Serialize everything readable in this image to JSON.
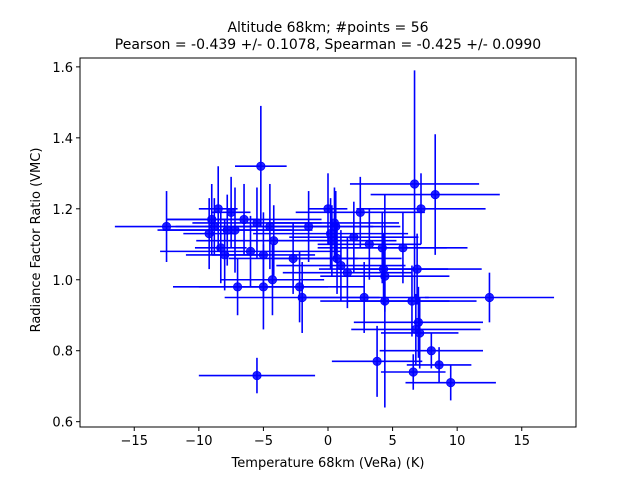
{
  "chart_data": {
    "type": "scatter",
    "title_line1": "Altitude 68km;  #points = 56",
    "title_line2": "Pearson = -0.439 +/-  0.1078, Spearman = -0.425 +/-  0.0990",
    "xlabel": "Temperature 68km (VeRa) (K)",
    "ylabel": "Radiance Factor Ratio (VMC)",
    "xlim": [
      -19.2,
      19.2
    ],
    "ylim": [
      0.585,
      1.625
    ],
    "xticks": [
      -15,
      -10,
      -5,
      0,
      5,
      10,
      15
    ],
    "xtick_labels": [
      "−15",
      "−10",
      "−5",
      "0",
      "5",
      "10",
      "15"
    ],
    "yticks": [
      0.6,
      0.8,
      1.0,
      1.2,
      1.4,
      1.6
    ],
    "ytick_labels": [
      "0.6",
      "0.8",
      "1.0",
      "1.2",
      "1.4",
      "1.6"
    ],
    "grid": false,
    "marker_color": "#0000ff",
    "series": [
      {
        "points": [
          {
            "x": -12.5,
            "y": 1.15,
            "xerr": 4.0,
            "yerr": 0.1
          },
          {
            "x": -9.0,
            "y": 1.17,
            "xerr": 3.5,
            "yerr": 0.1
          },
          {
            "x": -8.8,
            "y": 1.15,
            "xerr": 3.0,
            "yerr": 0.08
          },
          {
            "x": -8.5,
            "y": 1.2,
            "xerr": 1.5,
            "yerr": 0.12
          },
          {
            "x": -8.3,
            "y": 1.09,
            "xerr": 2.0,
            "yerr": 0.1
          },
          {
            "x": -8.0,
            "y": 1.07,
            "xerr": 3.0,
            "yerr": 0.1
          },
          {
            "x": -7.8,
            "y": 1.14,
            "xerr": 5.0,
            "yerr": 0.1
          },
          {
            "x": -7.5,
            "y": 1.19,
            "xerr": 1.5,
            "yerr": 0.1
          },
          {
            "x": -7.2,
            "y": 1.14,
            "xerr": 6.0,
            "yerr": 0.12
          },
          {
            "x": -7.0,
            "y": 0.98,
            "xerr": 5.0,
            "yerr": 0.08
          },
          {
            "x": -6.5,
            "y": 1.17,
            "xerr": 6.0,
            "yerr": 0.1
          },
          {
            "x": -6.0,
            "y": 1.08,
            "xerr": 7.0,
            "yerr": 0.1
          },
          {
            "x": -5.5,
            "y": 1.16,
            "xerr": 5.0,
            "yerr": 0.1
          },
          {
            "x": -5.5,
            "y": 0.73,
            "xerr": 4.5,
            "yerr": 0.05
          },
          {
            "x": -5.2,
            "y": 1.32,
            "xerr": 2.0,
            "yerr": 0.17
          },
          {
            "x": -5.0,
            "y": 0.98,
            "xerr": 5.0,
            "yerr": 0.12
          },
          {
            "x": -5.0,
            "y": 1.07,
            "xerr": 4.0,
            "yerr": 0.12
          },
          {
            "x": -4.5,
            "y": 1.15,
            "xerr": 5.0,
            "yerr": 0.12
          },
          {
            "x": -4.3,
            "y": 1.0,
            "xerr": 4.0,
            "yerr": 0.1
          },
          {
            "x": -4.2,
            "y": 1.11,
            "xerr": 6.0,
            "yerr": 0.1
          },
          {
            "x": -2.7,
            "y": 1.06,
            "xerr": 5.0,
            "yerr": 0.1
          },
          {
            "x": -2.2,
            "y": 0.98,
            "xerr": 5.0,
            "yerr": 0.1
          },
          {
            "x": -2.0,
            "y": 0.95,
            "xerr": 6.0,
            "yerr": 0.1
          },
          {
            "x": -1.5,
            "y": 1.15,
            "xerr": 5.0,
            "yerr": 0.1
          },
          {
            "x": 0.0,
            "y": 1.2,
            "xerr": 1.5,
            "yerr": 0.1
          },
          {
            "x": 0.2,
            "y": 1.13,
            "xerr": 6.0,
            "yerr": 0.1
          },
          {
            "x": 0.3,
            "y": 1.11,
            "xerr": 5.0,
            "yerr": 0.1
          },
          {
            "x": 0.5,
            "y": 1.16,
            "xerr": 5.0,
            "yerr": 0.1
          },
          {
            "x": 0.7,
            "y": 1.06,
            "xerr": 5.0,
            "yerr": 0.1
          },
          {
            "x": 1.0,
            "y": 1.04,
            "xerr": 5.0,
            "yerr": 0.1
          },
          {
            "x": 1.5,
            "y": 1.02,
            "xerr": 5.0,
            "yerr": 0.1
          },
          {
            "x": 2.0,
            "y": 1.12,
            "xerr": 5.0,
            "yerr": 0.1
          },
          {
            "x": 2.5,
            "y": 1.19,
            "xerr": 5.0,
            "yerr": 0.1
          },
          {
            "x": 2.8,
            "y": 0.95,
            "xerr": 5.0,
            "yerr": 0.1
          },
          {
            "x": 3.2,
            "y": 1.1,
            "xerr": 4.0,
            "yerr": 0.1
          },
          {
            "x": 3.8,
            "y": 0.77,
            "xerr": 3.5,
            "yerr": 0.1
          },
          {
            "x": 4.2,
            "y": 1.09,
            "xerr": 5.0,
            "yerr": 0.1
          },
          {
            "x": 4.3,
            "y": 1.03,
            "xerr": 5.0,
            "yerr": 0.1
          },
          {
            "x": 4.4,
            "y": 1.01,
            "xerr": 5.0,
            "yerr": 0.1
          },
          {
            "x": 4.4,
            "y": 0.94,
            "xerr": 5.0,
            "yerr": 0.3
          },
          {
            "x": 5.8,
            "y": 1.09,
            "xerr": 5.0,
            "yerr": 0.1
          },
          {
            "x": 6.5,
            "y": 0.94,
            "xerr": 5.0,
            "yerr": 0.1
          },
          {
            "x": 6.6,
            "y": 0.74,
            "xerr": 2.5,
            "yerr": 0.05
          },
          {
            "x": 6.7,
            "y": 1.27,
            "xerr": 5.0,
            "yerr": 0.32
          },
          {
            "x": 6.8,
            "y": 0.86,
            "xerr": 5.0,
            "yerr": 0.1
          },
          {
            "x": 6.9,
            "y": 1.03,
            "xerr": 5.0,
            "yerr": 0.1
          },
          {
            "x": 7.0,
            "y": 0.88,
            "xerr": 5.0,
            "yerr": 0.1
          },
          {
            "x": 7.1,
            "y": 0.85,
            "xerr": 3.0,
            "yerr": 0.1
          },
          {
            "x": 7.2,
            "y": 1.2,
            "xerr": 5.0,
            "yerr": 0.1
          },
          {
            "x": 8.0,
            "y": 0.8,
            "xerr": 4.0,
            "yerr": 0.05
          },
          {
            "x": 8.3,
            "y": 1.24,
            "xerr": 5.0,
            "yerr": 0.17
          },
          {
            "x": 8.6,
            "y": 0.76,
            "xerr": 2.5,
            "yerr": 0.05
          },
          {
            "x": 9.5,
            "y": 0.71,
            "xerr": 3.5,
            "yerr": 0.05
          },
          {
            "x": 12.5,
            "y": 0.95,
            "xerr": 5.0,
            "yerr": 0.07
          },
          {
            "x": 0.6,
            "y": 1.15,
            "xerr": 5.0,
            "yerr": 0.1
          },
          {
            "x": -9.2,
            "y": 1.13,
            "xerr": 2.0,
            "yerr": 0.1
          }
        ]
      }
    ]
  }
}
